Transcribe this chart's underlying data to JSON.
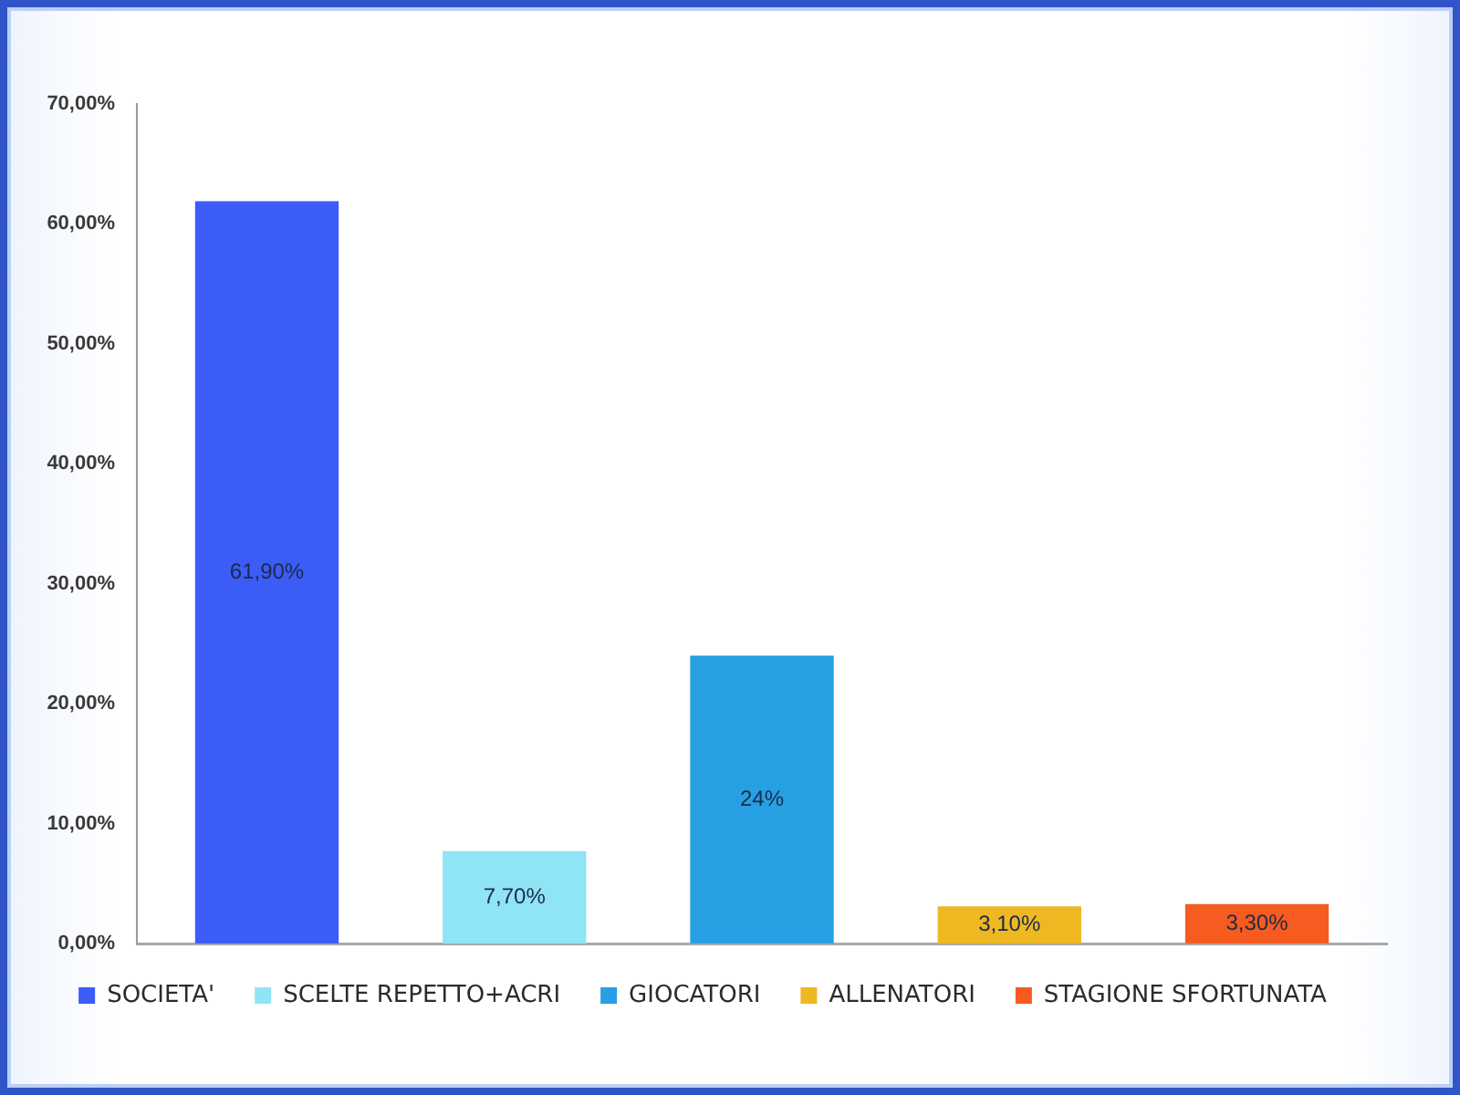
{
  "chart_data": {
    "type": "bar",
    "categories": [
      null
    ],
    "series": [
      {
        "name": "SOCIETA'",
        "color": "#3b5cf6",
        "values": [
          61.9
        ],
        "value_labels": [
          "61,90%"
        ]
      },
      {
        "name": "SCELTE REPETTO+ACRI",
        "color": "#8fe4f6",
        "values": [
          7.7
        ],
        "value_labels": [
          "7,70%"
        ]
      },
      {
        "name": "GIOCATORI",
        "color": "#27a0e3",
        "values": [
          24
        ],
        "value_labels": [
          "24%"
        ]
      },
      {
        "name": "ALLENATORI",
        "color": "#efb722",
        "values": [
          3.1
        ],
        "value_labels": [
          "3,10%"
        ]
      },
      {
        "name": "STAGIONE SFORTUNATA",
        "color": "#f65b1f",
        "values": [
          3.3
        ],
        "value_labels": [
          "3,30%"
        ]
      }
    ],
    "ylim": [
      0,
      70
    ],
    "yticks": [
      {
        "value": 0,
        "label": "0,00%"
      },
      {
        "value": 10,
        "label": "10,00%"
      },
      {
        "value": 20,
        "label": "20,00%"
      },
      {
        "value": 30,
        "label": "30,00%"
      },
      {
        "value": 40,
        "label": "40,00%"
      },
      {
        "value": 50,
        "label": "50,00%"
      },
      {
        "value": 60,
        "label": "60,00%"
      },
      {
        "value": 70,
        "label": "70,00%"
      }
    ],
    "legend": "bottom",
    "tick_labels": "y",
    "grid": false
  }
}
